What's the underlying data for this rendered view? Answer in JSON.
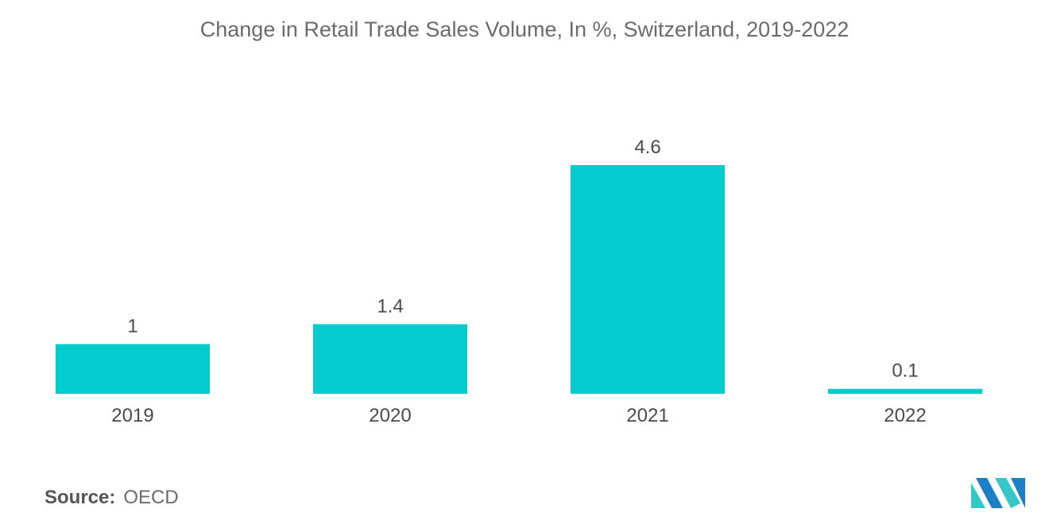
{
  "chart_data": {
    "type": "bar",
    "title": "Change in Retail Trade Sales Volume, In %, Switzerland, 2019-2022",
    "categories": [
      "2019",
      "2020",
      "2021",
      "2022"
    ],
    "values": [
      1,
      1.4,
      4.6,
      0.1
    ],
    "value_labels": [
      "1",
      "1.4",
      "4.6",
      "0.1"
    ],
    "xlabel": "",
    "ylabel": "",
    "ylim": [
      0,
      4.6
    ],
    "grid": false,
    "legend": "none",
    "bar_color": "#00ccce"
  },
  "footer": {
    "source_label": "Source:",
    "source_value": "OECD"
  },
  "logo": {
    "icon": "mordor-intelligence-logo-icon",
    "colors": [
      "#1b7fc4",
      "#35c7c8"
    ]
  }
}
